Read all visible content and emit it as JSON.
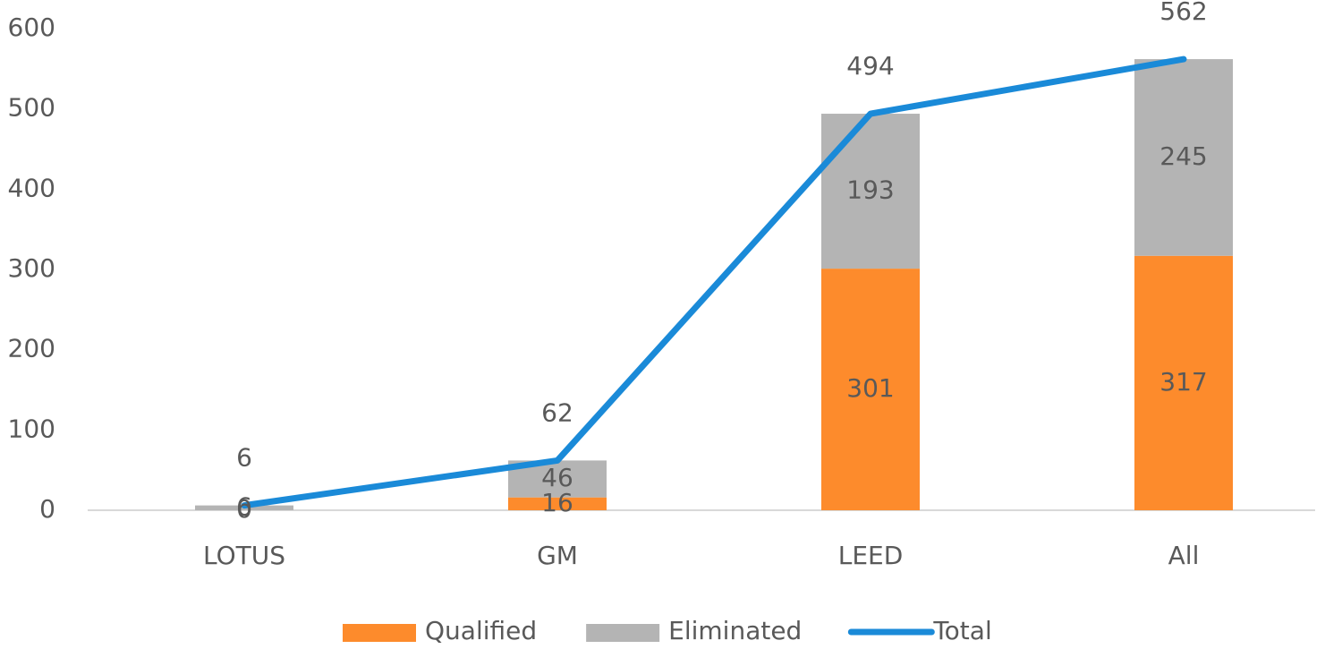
{
  "chart_data": {
    "type": "bar",
    "stacked": true,
    "categories": [
      "LOTUS",
      "GM",
      "LEED",
      "All"
    ],
    "series": [
      {
        "name": "Qualified",
        "type": "bar",
        "color": "#fd8b2c",
        "values": [
          0,
          16,
          301,
          317
        ]
      },
      {
        "name": "Eliminated",
        "type": "bar",
        "color": "#b4b4b4",
        "values": [
          6,
          46,
          193,
          245
        ]
      },
      {
        "name": "Total",
        "type": "line",
        "color": "#1a8ad8",
        "values": [
          6,
          62,
          494,
          562
        ]
      }
    ],
    "ylim": [
      0,
      600
    ],
    "yticks": [
      0,
      100,
      200,
      300,
      400,
      500,
      600
    ],
    "grid": false,
    "legend": "bottom"
  }
}
